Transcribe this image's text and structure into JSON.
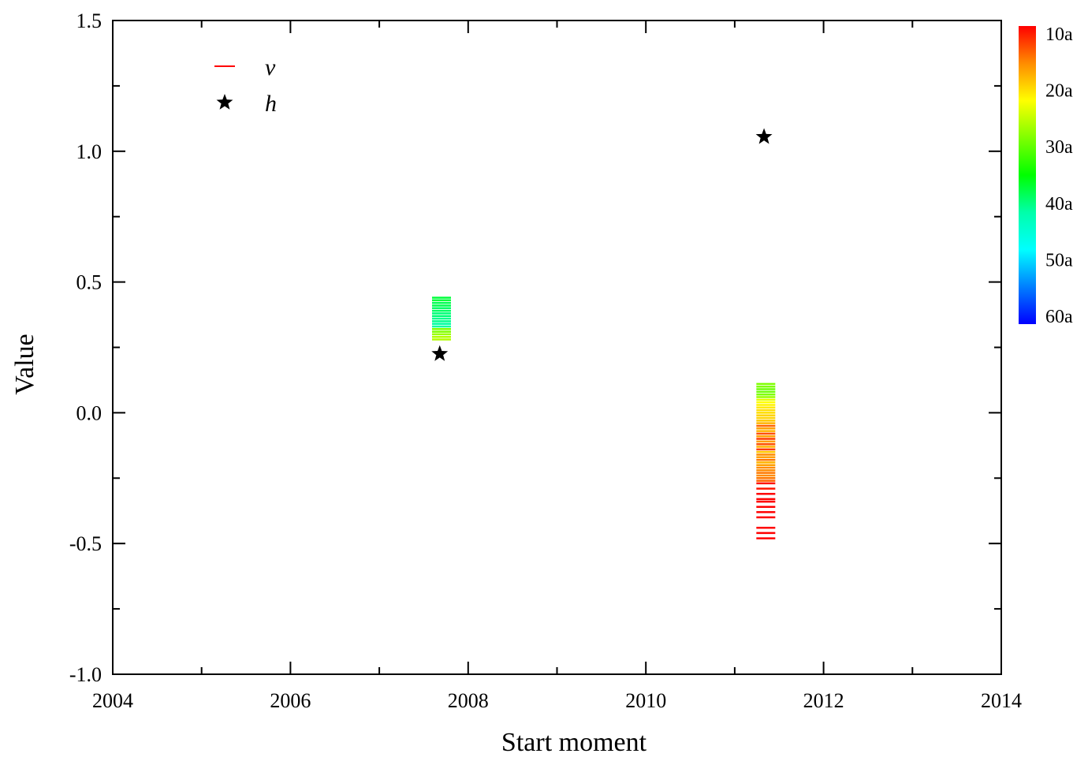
{
  "chart_data": {
    "type": "scatter",
    "xlabel": "Start moment",
    "ylabel": "Value",
    "xlim": [
      2004,
      2014
    ],
    "ylim": [
      -1.0,
      1.5
    ],
    "x_ticks": [
      "2004",
      "2006",
      "2008",
      "2010",
      "2012",
      "2014"
    ],
    "y_ticks": [
      "-1.0",
      "-0.5",
      "0.0",
      "0.5",
      "1.0",
      "1.5"
    ],
    "legend_position": "top-left",
    "grid": false,
    "series": [
      {
        "name": "v",
        "marker": "dash",
        "color_scale": "window length",
        "points": [
          {
            "x": 2007.7,
            "y": 0.44,
            "c": 38
          },
          {
            "x": 2007.7,
            "y": 0.43,
            "c": 38
          },
          {
            "x": 2007.7,
            "y": 0.42,
            "c": 39
          },
          {
            "x": 2007.7,
            "y": 0.41,
            "c": 39
          },
          {
            "x": 2007.7,
            "y": 0.4,
            "c": 40
          },
          {
            "x": 2007.7,
            "y": 0.39,
            "c": 40
          },
          {
            "x": 2007.7,
            "y": 0.38,
            "c": 41
          },
          {
            "x": 2007.7,
            "y": 0.37,
            "c": 41
          },
          {
            "x": 2007.7,
            "y": 0.36,
            "c": 42
          },
          {
            "x": 2007.7,
            "y": 0.35,
            "c": 42
          },
          {
            "x": 2007.7,
            "y": 0.34,
            "c": 43
          },
          {
            "x": 2007.7,
            "y": 0.33,
            "c": 43
          },
          {
            "x": 2007.7,
            "y": 0.32,
            "c": 30
          },
          {
            "x": 2007.7,
            "y": 0.31,
            "c": 30
          },
          {
            "x": 2007.7,
            "y": 0.3,
            "c": 29
          },
          {
            "x": 2007.7,
            "y": 0.29,
            "c": 28
          },
          {
            "x": 2007.7,
            "y": 0.28,
            "c": 28
          },
          {
            "x": 2011.35,
            "y": 0.11,
            "c": 30
          },
          {
            "x": 2011.35,
            "y": 0.1,
            "c": 30
          },
          {
            "x": 2011.35,
            "y": 0.09,
            "c": 31
          },
          {
            "x": 2011.35,
            "y": 0.08,
            "c": 31
          },
          {
            "x": 2011.35,
            "y": 0.07,
            "c": 30
          },
          {
            "x": 2011.35,
            "y": 0.06,
            "c": 29
          },
          {
            "x": 2011.35,
            "y": 0.05,
            "c": 26
          },
          {
            "x": 2011.35,
            "y": 0.04,
            "c": 25
          },
          {
            "x": 2011.35,
            "y": 0.03,
            "c": 24
          },
          {
            "x": 2011.35,
            "y": 0.02,
            "c": 23
          },
          {
            "x": 2011.35,
            "y": 0.01,
            "c": 22
          },
          {
            "x": 2011.35,
            "y": 0.0,
            "c": 22
          },
          {
            "x": 2011.35,
            "y": -0.01,
            "c": 21
          },
          {
            "x": 2011.35,
            "y": -0.02,
            "c": 21
          },
          {
            "x": 2011.35,
            "y": -0.03,
            "c": 20
          },
          {
            "x": 2011.35,
            "y": -0.04,
            "c": 19
          },
          {
            "x": 2011.35,
            "y": -0.05,
            "c": 15
          },
          {
            "x": 2011.35,
            "y": -0.06,
            "c": 18
          },
          {
            "x": 2011.35,
            "y": -0.07,
            "c": 19
          },
          {
            "x": 2011.35,
            "y": -0.08,
            "c": 14
          },
          {
            "x": 2011.35,
            "y": -0.09,
            "c": 18
          },
          {
            "x": 2011.35,
            "y": -0.1,
            "c": 13
          },
          {
            "x": 2011.35,
            "y": -0.11,
            "c": 18
          },
          {
            "x": 2011.35,
            "y": -0.12,
            "c": 14
          },
          {
            "x": 2011.35,
            "y": -0.13,
            "c": 19
          },
          {
            "x": 2011.35,
            "y": -0.14,
            "c": 13
          },
          {
            "x": 2011.35,
            "y": -0.15,
            "c": 20
          },
          {
            "x": 2011.35,
            "y": -0.16,
            "c": 17
          },
          {
            "x": 2011.35,
            "y": -0.17,
            "c": 18
          },
          {
            "x": 2011.35,
            "y": -0.18,
            "c": 16
          },
          {
            "x": 2011.35,
            "y": -0.19,
            "c": 19
          },
          {
            "x": 2011.35,
            "y": -0.2,
            "c": 18
          },
          {
            "x": 2011.35,
            "y": -0.21,
            "c": 17
          },
          {
            "x": 2011.35,
            "y": -0.22,
            "c": 17
          },
          {
            "x": 2011.35,
            "y": -0.23,
            "c": 16
          },
          {
            "x": 2011.35,
            "y": -0.24,
            "c": 17
          },
          {
            "x": 2011.35,
            "y": -0.25,
            "c": 16
          },
          {
            "x": 2011.35,
            "y": -0.26,
            "c": 15
          },
          {
            "x": 2011.35,
            "y": -0.27,
            "c": 11
          },
          {
            "x": 2011.35,
            "y": -0.29,
            "c": 11
          },
          {
            "x": 2011.35,
            "y": -0.31,
            "c": 10
          },
          {
            "x": 2011.35,
            "y": -0.33,
            "c": 10
          },
          {
            "x": 2011.35,
            "y": -0.34,
            "c": 10
          },
          {
            "x": 2011.35,
            "y": -0.36,
            "c": 10
          },
          {
            "x": 2011.35,
            "y": -0.38,
            "c": 10
          },
          {
            "x": 2011.35,
            "y": -0.4,
            "c": 10
          },
          {
            "x": 2011.35,
            "y": -0.44,
            "c": 10
          },
          {
            "x": 2011.35,
            "y": -0.46,
            "c": 10
          },
          {
            "x": 2011.35,
            "y": -0.48,
            "c": 10
          }
        ]
      },
      {
        "name": "h",
        "marker": "star",
        "color": "#000000",
        "points": [
          {
            "x": 2007.68,
            "y": 0.225
          },
          {
            "x": 2011.33,
            "y": 1.055
          }
        ]
      }
    ],
    "colorbar": {
      "labels": [
        "10a",
        "20a",
        "30a",
        "40a",
        "50a",
        "60a"
      ],
      "values": [
        10,
        20,
        30,
        40,
        50,
        60
      ],
      "colors": [
        "#ff0000",
        "#ff8c00",
        "#ffff00",
        "#7fff00",
        "#00ff00",
        "#00ffaa",
        "#00ffff",
        "#007fff",
        "#0000ff"
      ]
    }
  }
}
